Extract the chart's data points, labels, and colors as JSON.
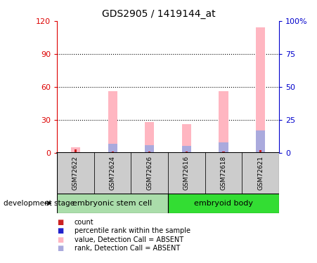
{
  "title": "GDS2905 / 1419144_at",
  "samples": [
    "GSM72622",
    "GSM72624",
    "GSM72626",
    "GSM72616",
    "GSM72618",
    "GSM72621"
  ],
  "pink_bars": [
    5,
    56,
    28,
    26,
    56,
    114
  ],
  "blue_bars": [
    0,
    8,
    7,
    6,
    9,
    20
  ],
  "red_bars": [
    3,
    1,
    1,
    1,
    1,
    2
  ],
  "ylim_left": [
    0,
    120
  ],
  "ylim_right": [
    0,
    100
  ],
  "yticks_left": [
    0,
    30,
    60,
    90,
    120
  ],
  "yticks_right": [
    0,
    25,
    50,
    75,
    100
  ],
  "ytick_labels_right": [
    "0",
    "25",
    "50",
    "75",
    "100%"
  ],
  "left_axis_color": "#DD0000",
  "right_axis_color": "#0000CC",
  "group_configs": [
    {
      "start": 0,
      "end": 2,
      "label": "embryonic stem cell",
      "color": "#AADDAA"
    },
    {
      "start": 3,
      "end": 5,
      "label": "embryoid body",
      "color": "#33DD33"
    }
  ],
  "legend_colors": [
    "#CC2222",
    "#2222CC",
    "#FFB6C1",
    "#AAAADD"
  ],
  "legend_labels": [
    "count",
    "percentile rank within the sample",
    "value, Detection Call = ABSENT",
    "rank, Detection Call = ABSENT"
  ],
  "pink_color": "#FFB6C1",
  "blue_bar_color": "#AAAADD",
  "red_bar_color": "#CC2222",
  "sample_box_color": "#CCCCCC",
  "bar_width": 0.25
}
